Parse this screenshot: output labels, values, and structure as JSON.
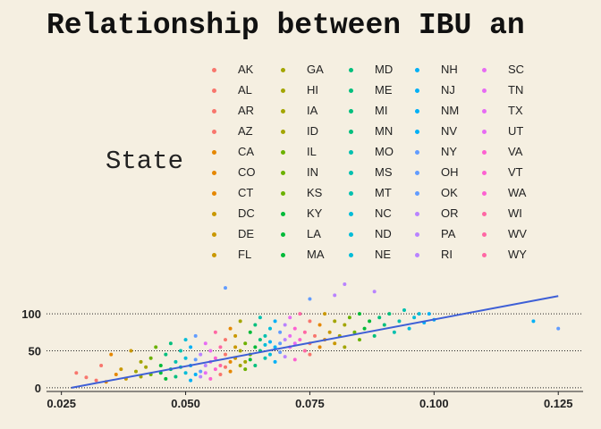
{
  "chart_data": {
    "type": "scatter",
    "title": "Relationship between IBU an",
    "xlabel": "",
    "ylabel": "",
    "xlim": [
      0.022,
      0.13
    ],
    "ylim": [
      -5,
      140
    ],
    "x_ticks": [
      "0.025",
      "0.050",
      "0.075",
      "0.100",
      "0.125"
    ],
    "x_tick_values": [
      0.025,
      0.05,
      0.075,
      0.1,
      0.125
    ],
    "y_ticks": [
      "0",
      "50",
      "100"
    ],
    "y_tick_values": [
      0,
      50,
      100
    ],
    "grid": "horizontal dotted",
    "legend": {
      "title": "State",
      "placement": "top",
      "columns": 5,
      "entries": [
        "AK",
        "AL",
        "AR",
        "AZ",
        "CA",
        "CO",
        "CT",
        "DC",
        "DE",
        "FL",
        "GA",
        "HI",
        "IA",
        "ID",
        "IL",
        "IN",
        "KS",
        "KY",
        "LA",
        "MA",
        "MD",
        "ME",
        "MI",
        "MN",
        "MO",
        "MS",
        "MT",
        "NC",
        "ND",
        "NE",
        "NH",
        "NJ",
        "NM",
        "NV",
        "NY",
        "OH",
        "OK",
        "OR",
        "PA",
        "RI",
        "SC",
        "TN",
        "TX",
        "UT",
        "VA",
        "VT",
        "WA",
        "WI",
        "WV",
        "WY"
      ]
    },
    "trend_line": {
      "x": [
        0.027,
        0.125
      ],
      "y": [
        0,
        124
      ],
      "color": "#3e5fd6"
    },
    "points": [
      [
        0.028,
        20
      ],
      [
        0.03,
        14
      ],
      [
        0.032,
        10
      ],
      [
        0.033,
        30
      ],
      [
        0.034,
        8
      ],
      [
        0.035,
        45
      ],
      [
        0.036,
        18
      ],
      [
        0.037,
        25
      ],
      [
        0.038,
        12
      ],
      [
        0.039,
        50
      ],
      [
        0.04,
        22
      ],
      [
        0.041,
        15
      ],
      [
        0.041,
        35
      ],
      [
        0.042,
        28
      ],
      [
        0.043,
        40
      ],
      [
        0.043,
        18
      ],
      [
        0.044,
        55
      ],
      [
        0.045,
        20
      ],
      [
        0.045,
        30
      ],
      [
        0.046,
        12
      ],
      [
        0.046,
        45
      ],
      [
        0.047,
        25
      ],
      [
        0.047,
        60
      ],
      [
        0.048,
        15
      ],
      [
        0.048,
        35
      ],
      [
        0.049,
        28
      ],
      [
        0.049,
        50
      ],
      [
        0.05,
        20
      ],
      [
        0.05,
        40
      ],
      [
        0.05,
        65
      ],
      [
        0.051,
        10
      ],
      [
        0.051,
        30
      ],
      [
        0.051,
        55
      ],
      [
        0.052,
        18
      ],
      [
        0.052,
        38
      ],
      [
        0.052,
        70
      ],
      [
        0.053,
        22
      ],
      [
        0.053,
        45
      ],
      [
        0.053,
        15
      ],
      [
        0.054,
        30
      ],
      [
        0.054,
        60
      ],
      [
        0.054,
        20
      ],
      [
        0.055,
        35
      ],
      [
        0.055,
        50
      ],
      [
        0.055,
        12
      ],
      [
        0.056,
        25
      ],
      [
        0.056,
        40
      ],
      [
        0.056,
        75
      ],
      [
        0.057,
        30
      ],
      [
        0.057,
        55
      ],
      [
        0.057,
        18
      ],
      [
        0.058,
        45
      ],
      [
        0.058,
        65
      ],
      [
        0.058,
        28
      ],
      [
        0.059,
        35
      ],
      [
        0.059,
        80
      ],
      [
        0.059,
        22
      ],
      [
        0.06,
        40
      ],
      [
        0.06,
        55
      ],
      [
        0.06,
        70
      ],
      [
        0.061,
        30
      ],
      [
        0.061,
        50
      ],
      [
        0.061,
        90
      ],
      [
        0.062,
        35
      ],
      [
        0.062,
        60
      ],
      [
        0.062,
        25
      ],
      [
        0.063,
        45
      ],
      [
        0.063,
        75
      ],
      [
        0.063,
        38
      ],
      [
        0.064,
        55
      ],
      [
        0.064,
        85
      ],
      [
        0.064,
        30
      ],
      [
        0.065,
        50
      ],
      [
        0.065,
        65
      ],
      [
        0.065,
        95
      ],
      [
        0.066,
        40
      ],
      [
        0.066,
        70
      ],
      [
        0.066,
        58
      ],
      [
        0.067,
        45
      ],
      [
        0.067,
        80
      ],
      [
        0.067,
        62
      ],
      [
        0.068,
        55
      ],
      [
        0.068,
        90
      ],
      [
        0.068,
        35
      ],
      [
        0.069,
        60
      ],
      [
        0.069,
        75
      ],
      [
        0.069,
        48
      ],
      [
        0.07,
        65
      ],
      [
        0.07,
        85
      ],
      [
        0.07,
        42
      ],
      [
        0.071,
        70
      ],
      [
        0.071,
        55
      ],
      [
        0.071,
        95
      ],
      [
        0.072,
        60
      ],
      [
        0.072,
        80
      ],
      [
        0.072,
        38
      ],
      [
        0.073,
        65
      ],
      [
        0.073,
        100
      ],
      [
        0.074,
        50
      ],
      [
        0.074,
        75
      ],
      [
        0.075,
        60
      ],
      [
        0.075,
        90
      ],
      [
        0.075,
        45
      ],
      [
        0.076,
        70
      ],
      [
        0.077,
        55
      ],
      [
        0.077,
        85
      ],
      [
        0.078,
        65
      ],
      [
        0.078,
        100
      ],
      [
        0.079,
        75
      ],
      [
        0.08,
        60
      ],
      [
        0.08,
        90
      ],
      [
        0.081,
        70
      ],
      [
        0.082,
        85
      ],
      [
        0.082,
        55
      ],
      [
        0.083,
        95
      ],
      [
        0.084,
        75
      ],
      [
        0.085,
        65
      ],
      [
        0.085,
        100
      ],
      [
        0.086,
        80
      ],
      [
        0.087,
        90
      ],
      [
        0.088,
        70
      ],
      [
        0.089,
        95
      ],
      [
        0.09,
        85
      ],
      [
        0.091,
        100
      ],
      [
        0.092,
        75
      ],
      [
        0.093,
        90
      ],
      [
        0.094,
        105
      ],
      [
        0.095,
        80
      ],
      [
        0.096,
        95
      ],
      [
        0.097,
        100
      ],
      [
        0.098,
        88
      ],
      [
        0.099,
        100
      ],
      [
        0.1,
        92
      ],
      [
        0.12,
        90
      ],
      [
        0.125,
        80
      ],
      [
        0.058,
        135
      ],
      [
        0.075,
        120
      ],
      [
        0.08,
        125
      ],
      [
        0.082,
        140
      ],
      [
        0.088,
        130
      ]
    ]
  }
}
